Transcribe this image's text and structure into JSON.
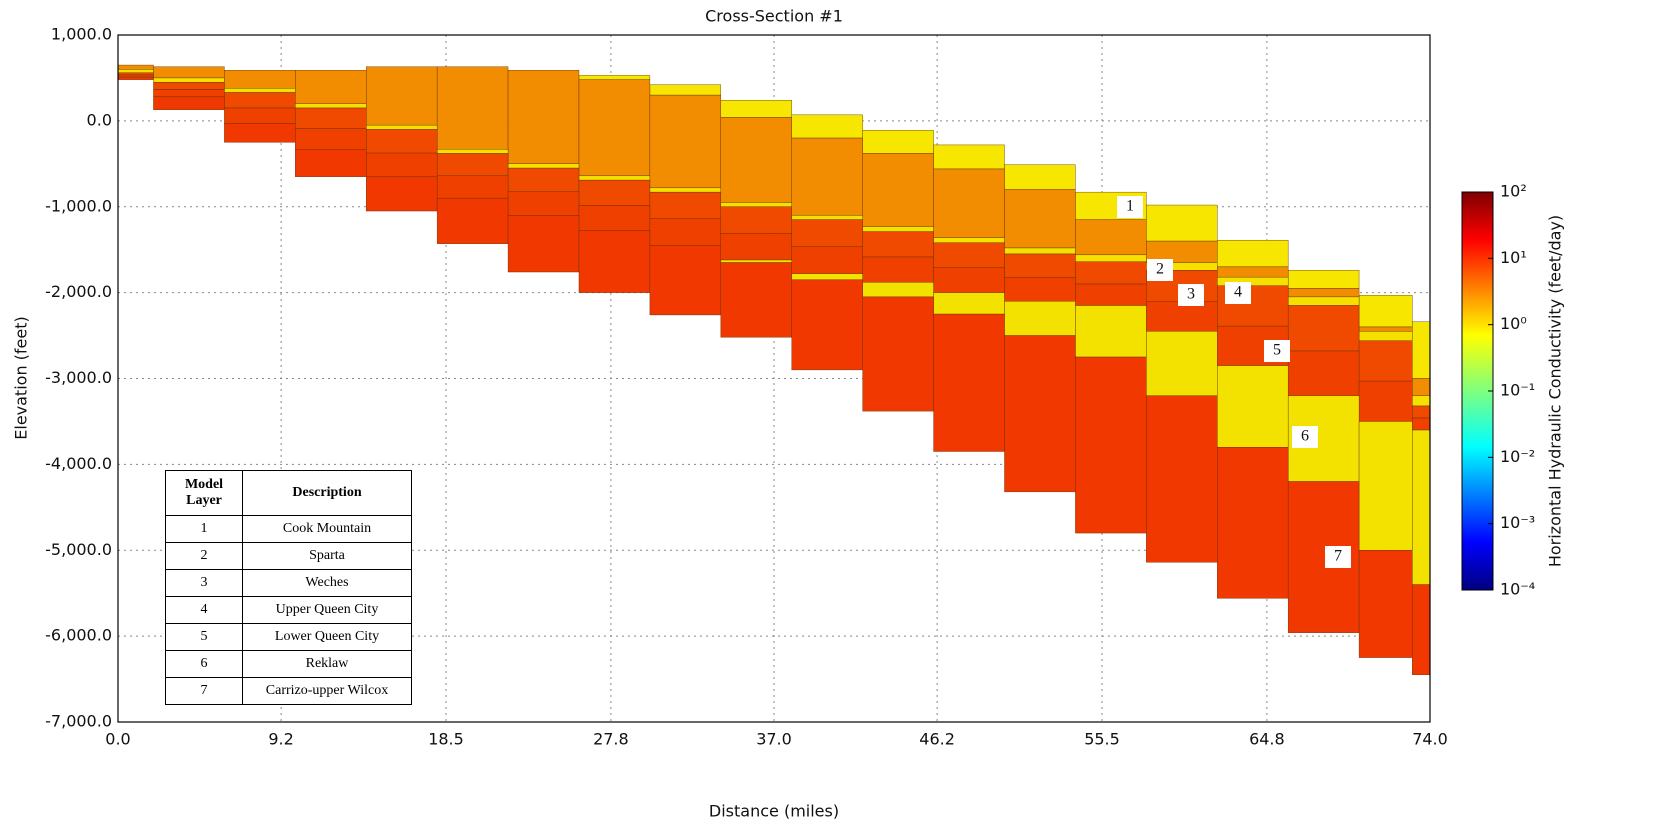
{
  "chart_data": {
    "type": "cross-section",
    "title": "Cross-Section #1",
    "x_label": "Distance (miles)",
    "y_label": "Elevation (feet)",
    "xlim": [
      0,
      74
    ],
    "ylim": [
      -7000,
      1000
    ],
    "xticks": [
      {
        "value": 0,
        "label": "0.0"
      },
      9.2,
      18.5,
      27.8,
      {
        "value": 37,
        "label": "37.0"
      },
      46.2,
      55.5,
      64.8,
      {
        "value": 74,
        "label": "74.0"
      }
    ],
    "yticks": [
      {
        "value": 1000,
        "label": "1,000.0"
      },
      {
        "value": 0,
        "label": "0.0"
      },
      {
        "value": -1000,
        "label": "-1,000.0"
      },
      {
        "value": -2000,
        "label": "-2,000.0"
      },
      {
        "value": -3000,
        "label": "-3,000.0"
      },
      {
        "value": -4000,
        "label": "-4,000.0"
      },
      {
        "value": -5000,
        "label": "-5,000.0"
      },
      {
        "value": -6000,
        "label": "-6,000.0"
      },
      {
        "value": -7000,
        "label": "-7,000.0"
      }
    ],
    "grid": true,
    "x": [
      0,
      4,
      8,
      12,
      16,
      20,
      24,
      28,
      32,
      36,
      40,
      44,
      48,
      52,
      56,
      60,
      64,
      68,
      72,
      74
    ],
    "ground": [
      650,
      630,
      590,
      590,
      630,
      630,
      590,
      530,
      420,
      240,
      70,
      -110,
      -280,
      -510,
      -830,
      -980,
      -1390,
      -1740,
      -2030,
      -2340
    ],
    "table_headers": [
      "Model Layer",
      "Description"
    ],
    "layers": [
      {
        "layer": "1",
        "description": "Cook Mountain",
        "color": "#f7e600",
        "bottom": [
          650,
          630,
          590,
          590,
          630,
          630,
          590,
          480,
          300,
          40,
          -200,
          -380,
          -560,
          -800,
          -1150,
          -1400,
          -1700,
          -1950,
          -2400,
          -3000
        ]
      },
      {
        "layer": "2",
        "description": "Sparta",
        "color": "#f28c00",
        "bottom": [
          600,
          500,
          380,
          200,
          -50,
          -330,
          -500,
          -640,
          -780,
          -950,
          -1100,
          -1230,
          -1360,
          -1480,
          -1560,
          -1650,
          -1820,
          -2050,
          -2450,
          -3200
        ]
      },
      {
        "layer": "3",
        "description": "Weches",
        "color": "#f5e000",
        "bottom": [
          560,
          450,
          330,
          150,
          -100,
          -380,
          -550,
          -690,
          -830,
          -1000,
          -1150,
          -1290,
          -1420,
          -1550,
          -1640,
          -1740,
          -1920,
          -2150,
          -2560,
          -3320
        ]
      },
      {
        "layer": "4",
        "description": "Upper Queen City",
        "color": "#f04a00",
        "bottom": [
          535,
          365,
          150,
          -90,
          -375,
          -640,
          -825,
          -985,
          -1140,
          -1310,
          -1465,
          -1585,
          -1710,
          -1825,
          -1900,
          -2100,
          -2390,
          -2680,
          -3030,
          -3460
        ]
      },
      {
        "layer": "5",
        "description": "Lower Queen City",
        "color": "#f04000",
        "bottom": [
          510,
          280,
          -30,
          -330,
          -650,
          -900,
          -1100,
          -1280,
          -1450,
          -1620,
          -1780,
          -1880,
          -2000,
          -2100,
          -2150,
          -2450,
          -2850,
          -3200,
          -3500,
          -3600
        ]
      },
      {
        "layer": "6",
        "description": "Reklaw",
        "color": "#f3e200",
        "bottom": [
          510,
          280,
          -30,
          -330,
          -650,
          -900,
          -1100,
          -1280,
          -1450,
          -1650,
          -1850,
          -2050,
          -2250,
          -2500,
          -2750,
          -3200,
          -3800,
          -4200,
          -5000,
          -5400
        ]
      },
      {
        "layer": "7",
        "description": "Carrizo-upper Wilcox",
        "color": "#f03800",
        "bottom": [
          480,
          130,
          -250,
          -650,
          -1050,
          -1430,
          -1760,
          -2000,
          -2260,
          -2520,
          -2900,
          -3380,
          -3850,
          -4320,
          -4800,
          -5140,
          -5560,
          -5960,
          -6250,
          -6450
        ]
      }
    ],
    "colorbar": {
      "label": "Horizontal Hydraulic Conductivity (feet/day)",
      "log": true,
      "clim": [
        0.0001,
        100
      ],
      "ticks": [
        {
          "value": 100,
          "label": "10²"
        },
        {
          "value": 10,
          "label": "10¹"
        },
        {
          "value": 1,
          "label": "10⁰"
        },
        {
          "value": 0.1,
          "label": "10⁻¹"
        },
        {
          "value": 0.01,
          "label": "10⁻²"
        },
        {
          "value": 0.001,
          "label": "10⁻³"
        },
        {
          "value": 0.0001,
          "label": "10⁻⁴"
        }
      ]
    }
  }
}
